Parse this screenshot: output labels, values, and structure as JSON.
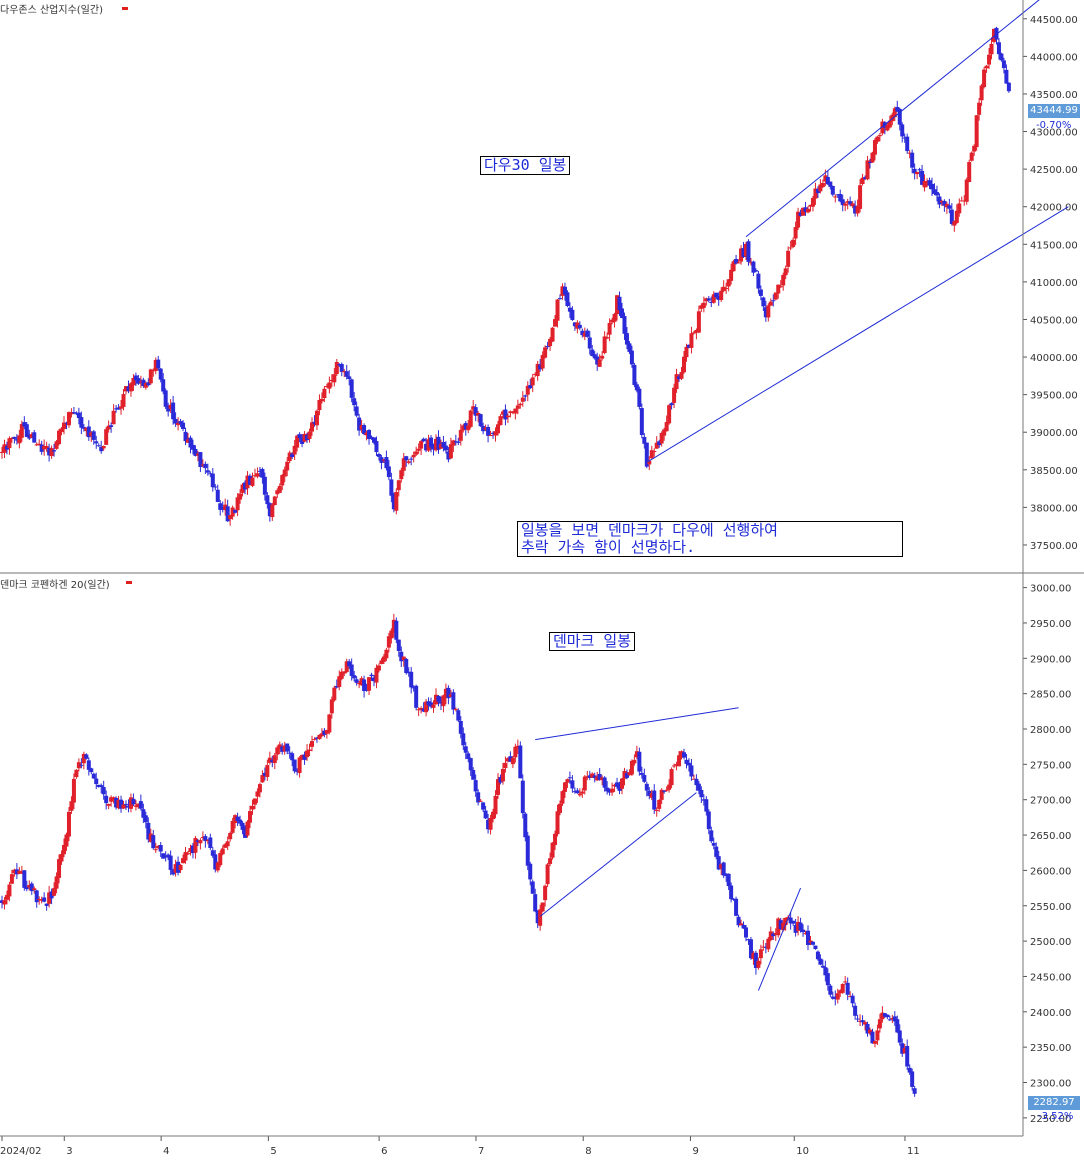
{
  "panels": {
    "dow": {
      "title": "다우존스 산업지수(일간)",
      "last_price": "43444.99",
      "change": "-0.70%"
    },
    "denmark": {
      "title": "덴마크 코펜하겐 20(일간)",
      "last_price": "2282.97",
      "change": "-3.52%"
    }
  },
  "annotations": {
    "dow_label": "다우30 일봉",
    "comment_line1": "일봉을 보면 덴마크가 다우에 선행하여",
    "comment_line2": "추락 가속 함이 선명하다.",
    "denmark_label": "덴마크 일봉"
  },
  "colors": {
    "up": "#e0202a",
    "down": "#2a2ad8",
    "trendline": "#1e2bd6",
    "price_box": "#5f9bd8"
  },
  "chart_data": [
    {
      "type": "candlestick",
      "title": "다우존스 산업지수(일간)",
      "ylim": [
        37300,
        44750
      ],
      "yticks": [
        "44500.00",
        "44000.00",
        "43500.00",
        "43000.00",
        "42500.00",
        "42000.00",
        "41500.00",
        "41000.00",
        "40500.00",
        "40000.00",
        "39500.00",
        "39000.00",
        "38500.00",
        "38000.00",
        "37500.00"
      ],
      "close_path": [
        [
          0,
          38750
        ],
        [
          8,
          39050
        ],
        [
          20,
          38700
        ],
        [
          28,
          39350
        ],
        [
          34,
          39000
        ],
        [
          40,
          38800
        ],
        [
          46,
          39300
        ],
        [
          52,
          39700
        ],
        [
          58,
          39650
        ],
        [
          62,
          39900
        ],
        [
          66,
          39400
        ],
        [
          70,
          39150
        ],
        [
          76,
          38800
        ],
        [
          82,
          38500
        ],
        [
          88,
          38050
        ],
        [
          92,
          37850
        ],
        [
          98,
          38300
        ],
        [
          104,
          38500
        ],
        [
          108,
          37850
        ],
        [
          112,
          38300
        ],
        [
          118,
          38850
        ],
        [
          124,
          39000
        ],
        [
          130,
          39600
        ],
        [
          136,
          39950
        ],
        [
          140,
          39700
        ],
        [
          144,
          39100
        ],
        [
          148,
          39000
        ],
        [
          154,
          38600
        ],
        [
          158,
          38050
        ],
        [
          162,
          38600
        ],
        [
          168,
          38800
        ],
        [
          174,
          38850
        ],
        [
          180,
          38700
        ],
        [
          186,
          39000
        ],
        [
          190,
          39300
        ],
        [
          196,
          38950
        ],
        [
          202,
          39200
        ],
        [
          208,
          39400
        ],
        [
          214,
          39650
        ],
        [
          220,
          40200
        ],
        [
          226,
          40950
        ],
        [
          230,
          40400
        ],
        [
          236,
          40300
        ],
        [
          240,
          39850
        ],
        [
          244,
          40300
        ],
        [
          248,
          40750
        ],
        [
          252,
          40200
        ],
        [
          256,
          39500
        ],
        [
          260,
          38600
        ],
        [
          264,
          38800
        ],
        [
          268,
          39200
        ],
        [
          272,
          39700
        ],
        [
          276,
          40050
        ],
        [
          280,
          40450
        ],
        [
          284,
          40750
        ],
        [
          290,
          40850
        ],
        [
          296,
          41300
        ],
        [
          300,
          41450
        ],
        [
          304,
          41050
        ],
        [
          308,
          40600
        ],
        [
          312,
          40800
        ],
        [
          316,
          41200
        ],
        [
          320,
          41800
        ],
        [
          324,
          42000
        ],
        [
          328,
          42150
        ],
        [
          332,
          42350
        ],
        [
          336,
          42150
        ],
        [
          340,
          42050
        ],
        [
          344,
          42000
        ],
        [
          348,
          42400
        ],
        [
          352,
          42900
        ],
        [
          356,
          43100
        ],
        [
          360,
          43300
        ],
        [
          364,
          42900
        ],
        [
          368,
          42500
        ],
        [
          372,
          42300
        ],
        [
          376,
          42150
        ],
        [
          380,
          42000
        ],
        [
          384,
          41800
        ],
        [
          388,
          42150
        ],
        [
          392,
          42900
        ],
        [
          396,
          43800
        ],
        [
          400,
          44300
        ],
        [
          402,
          44100
        ],
        [
          404,
          43900
        ],
        [
          406,
          43445
        ]
      ],
      "trendlines": [
        {
          "from": [
            300,
            41600
          ],
          "to": [
            420,
            44800
          ]
        },
        {
          "from": [
            260,
            38600
          ],
          "to": [
            430,
            42000
          ]
        }
      ]
    },
    {
      "type": "candlestick",
      "title": "덴마크 코펜하겐 20(일간)",
      "ylim": [
        2230,
        3015
      ],
      "yticks": [
        "3000.00",
        "2950.00",
        "2900.00",
        "2850.00",
        "2800.00",
        "2750.00",
        "2700.00",
        "2650.00",
        "2600.00",
        "2550.00",
        "2500.00",
        "2450.00",
        "2400.00",
        "2350.00",
        "2300.00",
        "2250.00"
      ],
      "close_path": [
        [
          0,
          2560
        ],
        [
          6,
          2600
        ],
        [
          12,
          2570
        ],
        [
          18,
          2550
        ],
        [
          22,
          2590
        ],
        [
          26,
          2660
        ],
        [
          30,
          2740
        ],
        [
          34,
          2760
        ],
        [
          38,
          2720
        ],
        [
          42,
          2700
        ],
        [
          48,
          2690
        ],
        [
          54,
          2700
        ],
        [
          58,
          2660
        ],
        [
          64,
          2620
        ],
        [
          70,
          2600
        ],
        [
          76,
          2630
        ],
        [
          82,
          2650
        ],
        [
          86,
          2600
        ],
        [
          90,
          2640
        ],
        [
          94,
          2670
        ],
        [
          98,
          2650
        ],
        [
          102,
          2700
        ],
        [
          106,
          2740
        ],
        [
          110,
          2760
        ],
        [
          114,
          2780
        ],
        [
          118,
          2740
        ],
        [
          122,
          2760
        ],
        [
          126,
          2790
        ],
        [
          130,
          2790
        ],
        [
          134,
          2850
        ],
        [
          138,
          2890
        ],
        [
          142,
          2880
        ],
        [
          146,
          2860
        ],
        [
          150,
          2870
        ],
        [
          154,
          2900
        ],
        [
          158,
          2950
        ],
        [
          160,
          2910
        ],
        [
          164,
          2880
        ],
        [
          168,
          2820
        ],
        [
          172,
          2840
        ],
        [
          176,
          2840
        ],
        [
          180,
          2850
        ],
        [
          184,
          2810
        ],
        [
          188,
          2760
        ],
        [
          192,
          2700
        ],
        [
          196,
          2660
        ],
        [
          200,
          2720
        ],
        [
          204,
          2750
        ],
        [
          208,
          2780
        ],
        [
          212,
          2600
        ],
        [
          216,
          2520
        ],
        [
          220,
          2600
        ],
        [
          224,
          2680
        ],
        [
          228,
          2730
        ],
        [
          232,
          2700
        ],
        [
          236,
          2740
        ],
        [
          240,
          2730
        ],
        [
          244,
          2720
        ],
        [
          248,
          2710
        ],
        [
          252,
          2740
        ],
        [
          256,
          2760
        ],
        [
          260,
          2710
        ],
        [
          264,
          2690
        ],
        [
          268,
          2720
        ],
        [
          272,
          2760
        ],
        [
          276,
          2760
        ],
        [
          280,
          2720
        ],
        [
          284,
          2680
        ],
        [
          288,
          2610
        ],
        [
          292,
          2590
        ],
        [
          296,
          2540
        ],
        [
          300,
          2500
        ],
        [
          304,
          2470
        ],
        [
          308,
          2490
        ],
        [
          312,
          2520
        ],
        [
          316,
          2530
        ],
        [
          320,
          2520
        ],
        [
          324,
          2510
        ],
        [
          328,
          2480
        ],
        [
          332,
          2450
        ],
        [
          336,
          2410
        ],
        [
          340,
          2440
        ],
        [
          344,
          2390
        ],
        [
          348,
          2380
        ],
        [
          352,
          2360
        ],
        [
          356,
          2400
        ],
        [
          360,
          2380
        ],
        [
          364,
          2340
        ],
        [
          368,
          2283
        ]
      ],
      "trendlines": [
        {
          "from": [
            215,
            2785
          ],
          "to": [
            297,
            2830
          ]
        },
        {
          "from": [
            217,
            2535
          ],
          "to": [
            280,
            2710
          ]
        },
        {
          "from": [
            305,
            2430
          ],
          "to": [
            322,
            2575
          ]
        }
      ]
    }
  ],
  "xaxis": {
    "ticks": [
      {
        "label": "2024/02",
        "pos": 0
      },
      {
        "label": "3",
        "pos": 18
      },
      {
        "label": "4",
        "pos": 46
      },
      {
        "label": "5",
        "pos": 77
      },
      {
        "label": "6",
        "pos": 109
      },
      {
        "label": "7",
        "pos": 137
      },
      {
        "label": "8",
        "pos": 168
      },
      {
        "label": "9",
        "pos": 199
      },
      {
        "label": "10",
        "pos": 229
      },
      {
        "label": "11",
        "pos": 261
      }
    ]
  }
}
